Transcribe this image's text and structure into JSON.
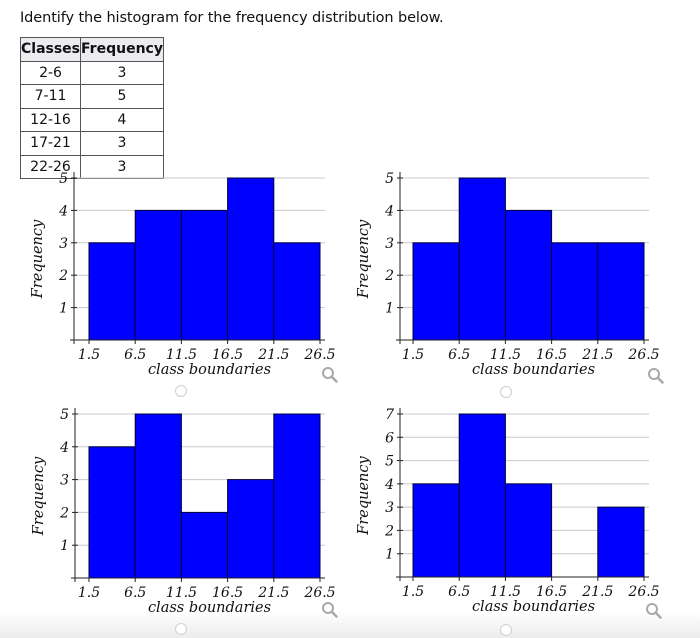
{
  "prompt": "Identify the histogram for the frequency distribution below.",
  "table": {
    "headers": [
      "Classes",
      "Frequency"
    ],
    "rows": [
      [
        "2-6",
        "3"
      ],
      [
        "7-11",
        "5"
      ],
      [
        "12-16",
        "4"
      ],
      [
        "17-21",
        "3"
      ],
      [
        "22-26",
        "3"
      ]
    ]
  },
  "colors": {
    "bar_fill": "#0000ff",
    "bar_stroke": "#00003a",
    "grid": "#c8c8c8",
    "axis": "#222222",
    "radio_border": "#cfcfcf",
    "zoom_icon": "#a9a9a9"
  },
  "icons": {
    "zoom": "magnifier-icon",
    "radio": "radio-circle"
  },
  "chart_data": [
    {
      "type": "bar",
      "option": "A",
      "title": "",
      "xlabel": "class boundaries",
      "ylabel": "Frequency",
      "boundaries": [
        "1.5",
        "6.5",
        "11.5",
        "16.5",
        "21.5",
        "26.5"
      ],
      "categories": [
        "1.5-6.5",
        "6.5-11.5",
        "11.5-16.5",
        "16.5-21.5",
        "21.5-26.5"
      ],
      "values": [
        3,
        4,
        4,
        5,
        3
      ],
      "yticks": [
        1,
        2,
        3,
        4,
        5
      ],
      "ylim": [
        0,
        5
      ],
      "grid": true
    },
    {
      "type": "bar",
      "option": "B",
      "title": "",
      "xlabel": "class boundaries",
      "ylabel": "Frequency",
      "boundaries": [
        "1.5",
        "6.5",
        "11.5",
        "16.5",
        "21.5",
        "26.5"
      ],
      "categories": [
        "1.5-6.5",
        "6.5-11.5",
        "11.5-16.5",
        "16.5-21.5",
        "21.5-26.5"
      ],
      "values": [
        3,
        5,
        4,
        3,
        3
      ],
      "yticks": [
        1,
        2,
        3,
        4,
        5
      ],
      "ylim": [
        0,
        5
      ],
      "grid": true
    },
    {
      "type": "bar",
      "option": "C",
      "title": "",
      "xlabel": "class boundaries",
      "ylabel": "Frequency",
      "boundaries": [
        "1.5",
        "6.5",
        "11.5",
        "16.5",
        "21.5",
        "26.5"
      ],
      "categories": [
        "1.5-6.5",
        "6.5-11.5",
        "11.5-16.5",
        "16.5-21.5",
        "21.5-26.5"
      ],
      "values": [
        4,
        5,
        2,
        3,
        5
      ],
      "yticks": [
        1,
        2,
        3,
        4,
        5
      ],
      "ylim": [
        0,
        5
      ],
      "grid": true
    },
    {
      "type": "bar",
      "option": "D",
      "title": "",
      "xlabel": "class boundaries",
      "ylabel": "Frequency",
      "boundaries": [
        "1.5",
        "6.5",
        "11.5",
        "16.5",
        "21.5",
        "26.5"
      ],
      "categories": [
        "1.5-6.5",
        "6.5-11.5",
        "11.5-16.5",
        "16.5-21.5",
        "21.5-26.5"
      ],
      "values": [
        4,
        7,
        4,
        0,
        3
      ],
      "yticks": [
        1,
        2,
        3,
        4,
        5,
        6,
        7
      ],
      "ylim": [
        0,
        7
      ],
      "grid": true
    }
  ]
}
